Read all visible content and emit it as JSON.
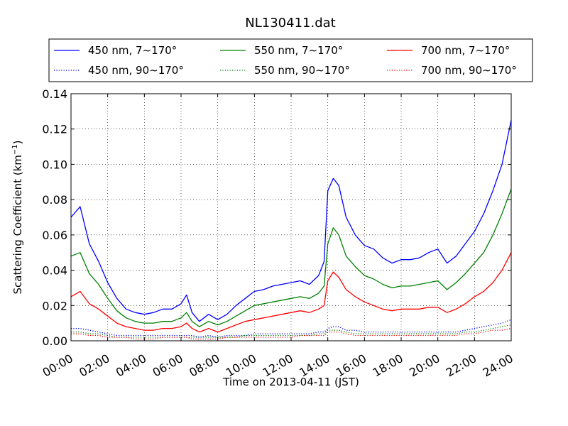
{
  "chart_data": {
    "type": "line",
    "title": "NL130411.dat",
    "xlabel": "Time on 2013-04-11 (JST)",
    "ylabel_main": "Scattering Coefficient (km",
    "ylabel_sup": "−1",
    "ylabel_end": ")",
    "xlim": [
      "00:00",
      "24:00"
    ],
    "ylim": [
      0,
      0.14
    ],
    "x_ticks": [
      "00:00",
      "02:00",
      "04:00",
      "06:00",
      "08:00",
      "10:00",
      "12:00",
      "14:00",
      "16:00",
      "18:00",
      "20:00",
      "22:00",
      "24:00"
    ],
    "y_ticks": [
      "0.00",
      "0.02",
      "0.04",
      "0.06",
      "0.08",
      "0.10",
      "0.12",
      "0.14"
    ],
    "grid": true,
    "legend_position": "top, above plot",
    "x_hours": [
      0,
      0.5,
      1,
      1.5,
      2,
      2.5,
      3,
      3.5,
      4,
      4.5,
      5,
      5.5,
      6,
      6.3,
      6.6,
      7,
      7.5,
      8,
      8.5,
      9,
      9.5,
      10,
      10.5,
      11,
      11.5,
      12,
      12.5,
      13,
      13.5,
      13.8,
      14,
      14.3,
      14.6,
      15,
      15.5,
      16,
      16.5,
      17,
      17.5,
      18,
      18.5,
      19,
      19.5,
      20,
      20.5,
      21,
      21.5,
      22,
      22.5,
      23,
      23.5,
      24
    ],
    "series": [
      {
        "name": "450 nm, 7∼170°",
        "color": "#0000ff",
        "style": "solid",
        "values": [
          0.07,
          0.076,
          0.055,
          0.045,
          0.033,
          0.024,
          0.018,
          0.016,
          0.015,
          0.016,
          0.018,
          0.018,
          0.021,
          0.026,
          0.016,
          0.011,
          0.015,
          0.012,
          0.015,
          0.02,
          0.024,
          0.028,
          0.029,
          0.031,
          0.032,
          0.033,
          0.034,
          0.032,
          0.037,
          0.045,
          0.085,
          0.092,
          0.088,
          0.07,
          0.06,
          0.054,
          0.052,
          0.047,
          0.044,
          0.046,
          0.046,
          0.047,
          0.05,
          0.052,
          0.044,
          0.048,
          0.055,
          0.062,
          0.072,
          0.085,
          0.1,
          0.125
        ]
      },
      {
        "name": "450 nm, 90∼170°",
        "color": "#0000ff",
        "style": "dotted",
        "values": [
          0.007,
          0.007,
          0.006,
          0.005,
          0.004,
          0.003,
          0.003,
          0.003,
          0.003,
          0.003,
          0.003,
          0.003,
          0.003,
          0.003,
          0.003,
          0.002,
          0.003,
          0.002,
          0.003,
          0.003,
          0.003,
          0.004,
          0.004,
          0.004,
          0.004,
          0.004,
          0.004,
          0.004,
          0.005,
          0.005,
          0.007,
          0.008,
          0.008,
          0.006,
          0.006,
          0.005,
          0.005,
          0.005,
          0.005,
          0.005,
          0.005,
          0.005,
          0.005,
          0.005,
          0.005,
          0.005,
          0.006,
          0.007,
          0.008,
          0.009,
          0.01,
          0.012
        ]
      },
      {
        "name": "550 nm, 7∼170°",
        "color": "#008000",
        "style": "solid",
        "values": [
          0.048,
          0.05,
          0.038,
          0.032,
          0.024,
          0.017,
          0.013,
          0.011,
          0.01,
          0.01,
          0.011,
          0.011,
          0.013,
          0.016,
          0.011,
          0.008,
          0.011,
          0.009,
          0.011,
          0.014,
          0.017,
          0.02,
          0.021,
          0.022,
          0.023,
          0.024,
          0.025,
          0.024,
          0.027,
          0.031,
          0.055,
          0.064,
          0.06,
          0.048,
          0.042,
          0.037,
          0.035,
          0.032,
          0.03,
          0.031,
          0.031,
          0.032,
          0.033,
          0.034,
          0.029,
          0.033,
          0.038,
          0.044,
          0.05,
          0.06,
          0.072,
          0.086
        ]
      },
      {
        "name": "550 nm, 90∼170°",
        "color": "#008000",
        "style": "dotted",
        "values": [
          0.005,
          0.005,
          0.004,
          0.004,
          0.003,
          0.002,
          0.002,
          0.002,
          0.002,
          0.002,
          0.002,
          0.002,
          0.002,
          0.002,
          0.002,
          0.002,
          0.002,
          0.002,
          0.002,
          0.002,
          0.003,
          0.003,
          0.003,
          0.003,
          0.003,
          0.003,
          0.003,
          0.003,
          0.004,
          0.004,
          0.006,
          0.006,
          0.006,
          0.005,
          0.004,
          0.004,
          0.004,
          0.004,
          0.004,
          0.004,
          0.004,
          0.004,
          0.004,
          0.004,
          0.004,
          0.004,
          0.005,
          0.005,
          0.006,
          0.007,
          0.008,
          0.009
        ]
      },
      {
        "name": "700 nm, 7∼170°",
        "color": "#ff0000",
        "style": "solid",
        "values": [
          0.025,
          0.028,
          0.021,
          0.018,
          0.014,
          0.01,
          0.008,
          0.007,
          0.006,
          0.006,
          0.007,
          0.007,
          0.008,
          0.01,
          0.007,
          0.005,
          0.007,
          0.005,
          0.007,
          0.009,
          0.011,
          0.012,
          0.013,
          0.014,
          0.015,
          0.016,
          0.017,
          0.016,
          0.018,
          0.02,
          0.034,
          0.039,
          0.036,
          0.029,
          0.025,
          0.022,
          0.02,
          0.018,
          0.017,
          0.018,
          0.018,
          0.018,
          0.019,
          0.019,
          0.016,
          0.018,
          0.021,
          0.025,
          0.028,
          0.033,
          0.04,
          0.05
        ]
      },
      {
        "name": "700 nm, 90∼170°",
        "color": "#ff0000",
        "style": "dotted",
        "values": [
          0.004,
          0.004,
          0.003,
          0.003,
          0.002,
          0.002,
          0.002,
          0.001,
          0.001,
          0.001,
          0.002,
          0.002,
          0.002,
          0.002,
          0.001,
          0.001,
          0.001,
          0.001,
          0.002,
          0.002,
          0.002,
          0.002,
          0.002,
          0.002,
          0.002,
          0.002,
          0.003,
          0.003,
          0.003,
          0.003,
          0.005,
          0.005,
          0.005,
          0.004,
          0.003,
          0.003,
          0.003,
          0.003,
          0.003,
          0.003,
          0.003,
          0.003,
          0.003,
          0.003,
          0.003,
          0.003,
          0.004,
          0.004,
          0.005,
          0.006,
          0.006,
          0.007
        ]
      }
    ]
  }
}
